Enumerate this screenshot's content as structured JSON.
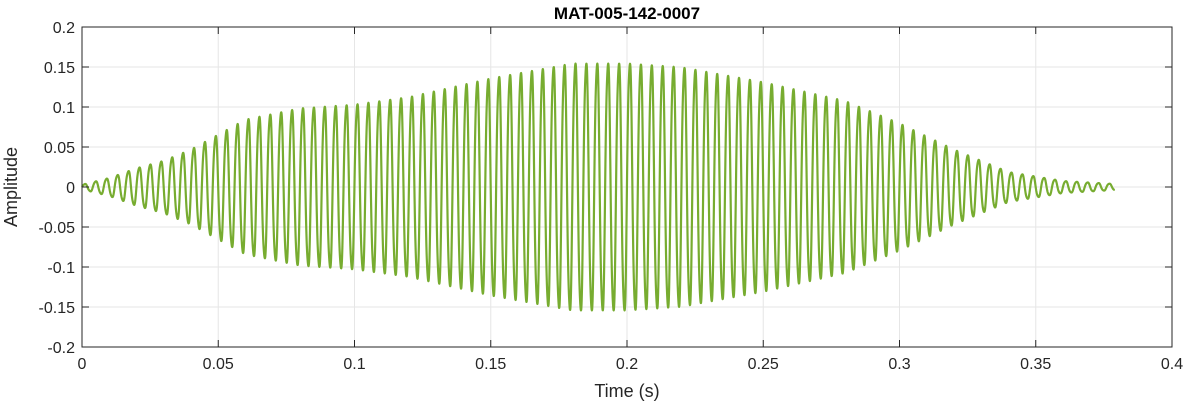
{
  "chart_data": {
    "type": "line",
    "title": "MAT-005-142-0007",
    "xlabel": "Time (s)",
    "ylabel": "Amplitude",
    "xlim": [
      0,
      0.4
    ],
    "ylim": [
      -0.2,
      0.2
    ],
    "xticks": [
      0,
      0.05,
      0.1,
      0.15,
      0.2,
      0.25,
      0.3,
      0.35,
      0.4
    ],
    "xtick_labels": [
      "0",
      "0.05",
      "0.1",
      "0.15",
      "0.2",
      "0.25",
      "0.3",
      "0.35",
      "0.4"
    ],
    "yticks": [
      -0.2,
      -0.15,
      -0.1,
      -0.05,
      0,
      0.05,
      0.1,
      0.15,
      0.2
    ],
    "ytick_labels": [
      "-0.2",
      "-0.15",
      "-0.1",
      "-0.05",
      "0",
      "0.05",
      "0.1",
      "0.15",
      "0.2"
    ],
    "grid": true,
    "series": [
      {
        "color": "#77ac30",
        "signal_range_s": [
          0,
          0.379
        ],
        "dominant_frequency_hz": 250,
        "envelope": {
          "t": [
            0,
            0.01,
            0.02,
            0.03,
            0.04,
            0.05,
            0.06,
            0.08,
            0.1,
            0.12,
            0.15,
            0.18,
            0.2,
            0.22,
            0.25,
            0.28,
            0.3,
            0.32,
            0.34,
            0.36,
            0.379
          ],
          "amp": [
            0.003,
            0.012,
            0.025,
            0.035,
            0.05,
            0.07,
            0.09,
            0.105,
            0.11,
            0.12,
            0.145,
            0.165,
            0.165,
            0.16,
            0.14,
            0.115,
            0.085,
            0.05,
            0.02,
            0.008,
            0.004
          ]
        }
      }
    ]
  }
}
